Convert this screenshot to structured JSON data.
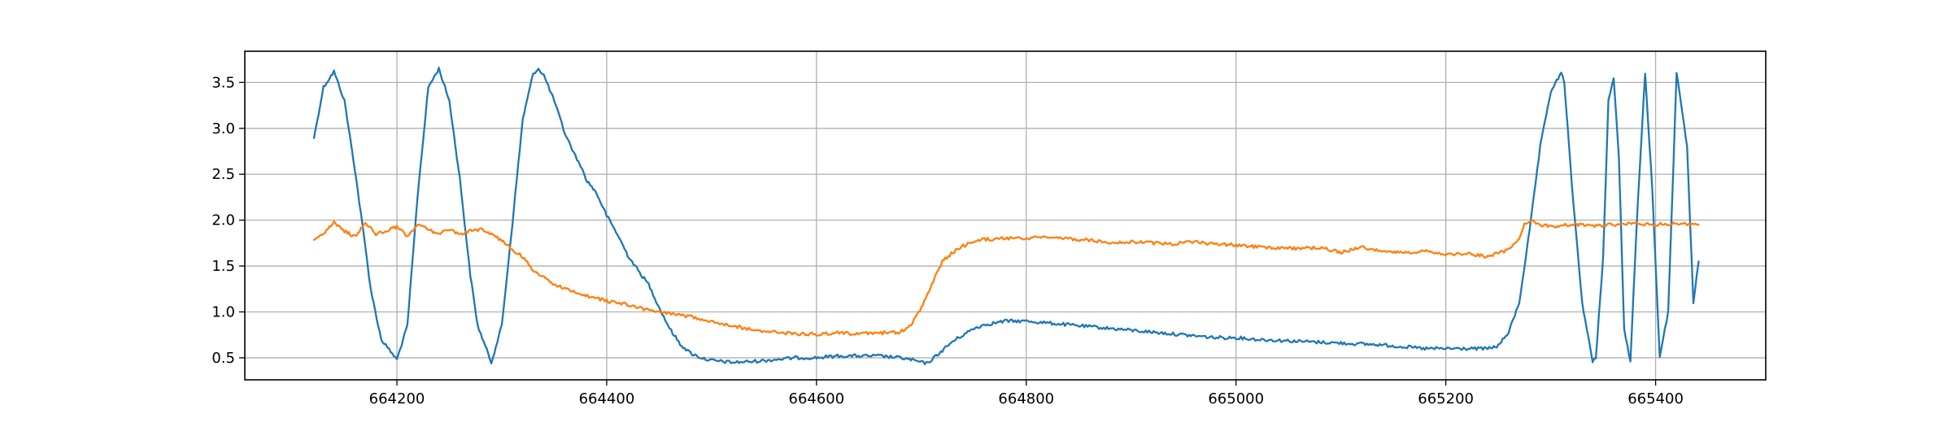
{
  "chart_data": {
    "type": "line",
    "title": "",
    "xlabel": "",
    "ylabel": "",
    "xlim": [
      664055,
      665505
    ],
    "ylim": [
      0.26,
      3.84
    ],
    "grid": true,
    "legend": "none",
    "x_ticks": [
      664200,
      664400,
      664600,
      664800,
      665000,
      665200,
      665400
    ],
    "x_tick_labels": [
      "664200",
      "664400",
      "664600",
      "664800",
      "665000",
      "665200",
      "665400"
    ],
    "y_ticks": [
      0.5,
      1.0,
      1.5,
      2.0,
      2.5,
      3.0,
      3.5
    ],
    "y_tick_labels": [
      "0.5",
      "1.0",
      "1.5",
      "2.0",
      "2.5",
      "3.0",
      "3.5"
    ],
    "series": [
      {
        "color": "#1f77b4",
        "x": [
          664121,
          664130,
          664140,
          664150,
          664160,
          664170,
          664175,
          664185,
          664200,
          664210,
          664220,
          664230,
          664240,
          664250,
          664260,
          664270,
          664277,
          664290,
          664300,
          664310,
          664320,
          664330,
          664335,
          664340,
          664350,
          664360,
          664370,
          664375,
          664380,
          664390,
          664400,
          664410,
          664420,
          664430,
          664440,
          664450,
          664460,
          664470,
          664480,
          664490,
          664500,
          664510,
          664520,
          664540,
          664560,
          664580,
          664600,
          664620,
          664640,
          664660,
          664680,
          664690,
          664700,
          664705,
          664710,
          664720,
          664730,
          664740,
          664750,
          664760,
          664770,
          664780,
          664800,
          664820,
          664840,
          664860,
          664880,
          664900,
          664920,
          664940,
          664960,
          664980,
          665000,
          665020,
          665040,
          665060,
          665080,
          665100,
          665120,
          665140,
          665160,
          665180,
          665200,
          665220,
          665240,
          665250,
          665260,
          665270,
          665280,
          665290,
          665300,
          665310,
          665313,
          665320,
          665330,
          665340,
          665343,
          665350,
          665355,
          665360,
          665365,
          665370,
          665376,
          665383,
          665390,
          665397,
          665404,
          665412,
          665420,
          665430,
          665436,
          665441
        ],
        "y": [
          2.9,
          3.45,
          3.62,
          3.3,
          2.55,
          1.7,
          1.25,
          0.7,
          0.48,
          0.85,
          2.3,
          3.45,
          3.65,
          3.3,
          2.45,
          1.4,
          0.85,
          0.45,
          0.85,
          1.95,
          3.1,
          3.6,
          3.65,
          3.58,
          3.3,
          2.95,
          2.7,
          2.6,
          2.45,
          2.3,
          2.05,
          1.85,
          1.62,
          1.45,
          1.3,
          1.05,
          0.82,
          0.65,
          0.55,
          0.5,
          0.47,
          0.46,
          0.45,
          0.46,
          0.48,
          0.5,
          0.5,
          0.52,
          0.52,
          0.52,
          0.5,
          0.48,
          0.45,
          0.44,
          0.48,
          0.58,
          0.68,
          0.75,
          0.82,
          0.86,
          0.88,
          0.9,
          0.9,
          0.88,
          0.86,
          0.84,
          0.82,
          0.8,
          0.78,
          0.76,
          0.74,
          0.72,
          0.72,
          0.7,
          0.69,
          0.68,
          0.67,
          0.66,
          0.65,
          0.64,
          0.62,
          0.6,
          0.6,
          0.6,
          0.6,
          0.63,
          0.78,
          1.1,
          1.9,
          2.8,
          3.4,
          3.6,
          3.5,
          2.4,
          1.1,
          0.45,
          0.5,
          1.6,
          3.3,
          3.55,
          2.7,
          0.8,
          0.47,
          2.2,
          3.6,
          2.3,
          0.5,
          1.0,
          3.6,
          2.8,
          1.1,
          1.55
        ]
      },
      {
        "color": "#ff7f0e",
        "x": [
          664121,
          664130,
          664140,
          664150,
          664160,
          664170,
          664180,
          664190,
          664200,
          664210,
          664220,
          664230,
          664240,
          664250,
          664260,
          664270,
          664280,
          664290,
          664300,
          664310,
          664320,
          664330,
          664340,
          664350,
          664360,
          664370,
          664380,
          664400,
          664420,
          664440,
          664460,
          664480,
          664500,
          664520,
          664540,
          664560,
          664580,
          664600,
          664620,
          664640,
          664660,
          664680,
          664690,
          664700,
          664710,
          664720,
          664730,
          664740,
          664750,
          664760,
          664780,
          664800,
          664820,
          664840,
          664860,
          664880,
          664900,
          664920,
          664940,
          664960,
          664980,
          665000,
          665020,
          665040,
          665060,
          665080,
          665100,
          665120,
          665140,
          665160,
          665180,
          665200,
          665220,
          665240,
          665260,
          665270,
          665275,
          665280,
          665290,
          665300,
          665320,
          665340,
          665360,
          665380,
          665400,
          665420,
          665441
        ],
        "y": [
          1.8,
          1.85,
          1.97,
          1.88,
          1.82,
          1.97,
          1.85,
          1.88,
          1.93,
          1.82,
          1.95,
          1.9,
          1.85,
          1.9,
          1.85,
          1.88,
          1.9,
          1.85,
          1.78,
          1.68,
          1.6,
          1.45,
          1.38,
          1.3,
          1.25,
          1.22,
          1.18,
          1.12,
          1.08,
          1.02,
          0.98,
          0.95,
          0.9,
          0.85,
          0.8,
          0.78,
          0.76,
          0.76,
          0.77,
          0.76,
          0.77,
          0.78,
          0.85,
          1.05,
          1.3,
          1.55,
          1.65,
          1.72,
          1.76,
          1.79,
          1.8,
          1.8,
          1.82,
          1.8,
          1.78,
          1.76,
          1.76,
          1.75,
          1.74,
          1.76,
          1.74,
          1.73,
          1.71,
          1.7,
          1.69,
          1.7,
          1.65,
          1.7,
          1.67,
          1.64,
          1.66,
          1.62,
          1.64,
          1.6,
          1.68,
          1.8,
          1.95,
          2.0,
          1.95,
          1.93,
          1.95,
          1.94,
          1.95,
          1.96,
          1.95,
          1.96,
          1.95
        ]
      }
    ]
  }
}
